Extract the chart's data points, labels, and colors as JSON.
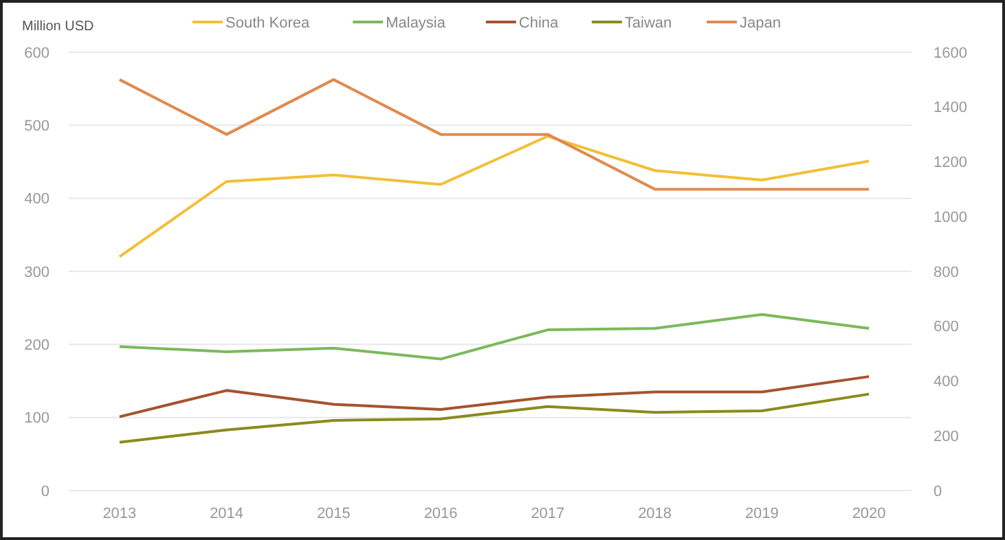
{
  "chart_data": {
    "type": "line",
    "ylabel": "Million USD",
    "categories": [
      "2013",
      "2014",
      "2015",
      "2016",
      "2017",
      "2018",
      "2019",
      "2020"
    ],
    "series": [
      {
        "name": "South Korea",
        "color": "#f2c036",
        "values": [
          320,
          423,
          432,
          419,
          485,
          438,
          425,
          451
        ]
      },
      {
        "name": "Malaysia",
        "color": "#7cb95a",
        "values": [
          197,
          190,
          195,
          180,
          220,
          222,
          241,
          222
        ]
      },
      {
        "name": "China",
        "color": "#a5532e",
        "values": [
          101,
          137,
          118,
          111,
          128,
          135,
          135,
          156
        ]
      },
      {
        "name": "Taiwan",
        "color": "#8c8a1c",
        "values": [
          66,
          83,
          96,
          98,
          115,
          107,
          109,
          132
        ]
      },
      {
        "name": "Japan",
        "color": "#e08a4e",
        "axis": "y2",
        "values": [
          1500,
          1300,
          1500,
          1300,
          1300,
          1100,
          1100,
          1100
        ]
      }
    ],
    "ylim": [
      0,
      600
    ],
    "yticks": [
      0,
      100,
      200,
      300,
      400,
      500,
      600
    ],
    "y2lim": [
      0,
      1600
    ],
    "y2ticks": [
      0,
      200,
      400,
      600,
      800,
      1000,
      1200,
      1400,
      1600
    ],
    "grid": "y",
    "legend": "top",
    "marker": "none",
    "line_style": "solid"
  }
}
